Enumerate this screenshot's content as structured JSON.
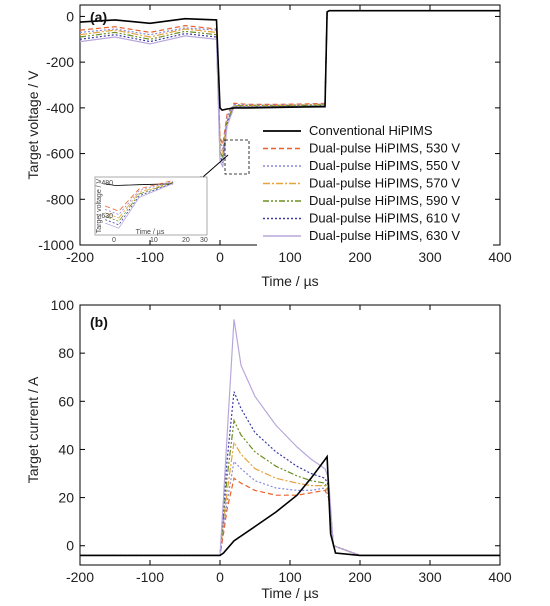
{
  "chart_data": [
    {
      "panel": "(a)",
      "type": "line",
      "xlabel": "Time / µs",
      "ylabel": "Target voltage / V",
      "xlim": [
        -200,
        400
      ],
      "ylim": [
        -1000,
        50
      ],
      "xticks": [
        "-200",
        "-100",
        "0",
        "100",
        "200",
        "300",
        "400"
      ],
      "yticks": [
        "0",
        "-200",
        "-400",
        "-600",
        "-800",
        "-1000"
      ],
      "legend_position": "right",
      "series": [
        {
          "name": "Conventional HiPIMS",
          "color": "#000000",
          "dash": "solid",
          "x": [
            -200,
            -150,
            -100,
            -50,
            -5,
            0,
            3,
            10,
            20,
            40,
            80,
            120,
            150,
            153,
            156,
            200,
            300,
            400
          ],
          "y": [
            -25,
            -15,
            -30,
            -10,
            -15,
            -400,
            -410,
            -405,
            -400,
            -400,
            -398,
            -396,
            -395,
            20,
            25,
            25,
            25,
            25
          ]
        },
        {
          "name": "Dual-pulse HiPIMS, 530 V",
          "color": "#e8612c",
          "dash": "5,3",
          "x": [
            -200,
            -150,
            -100,
            -50,
            -5,
            0,
            4,
            10,
            20,
            40,
            80,
            120,
            150,
            153,
            156,
            200,
            300,
            400
          ],
          "y": [
            -60,
            -45,
            -70,
            -40,
            -55,
            -530,
            -560,
            -430,
            -380,
            -385,
            -385,
            -383,
            -380,
            20,
            25,
            25,
            25,
            25
          ]
        },
        {
          "name": "Dual-pulse HiPIMS, 550 V",
          "color": "#8a8ae0",
          "dash": "2,2",
          "x": [
            -200,
            -150,
            -100,
            -50,
            -5,
            0,
            4,
            10,
            20,
            40,
            80,
            120,
            150,
            153,
            156,
            200,
            300,
            400
          ],
          "y": [
            -70,
            -55,
            -80,
            -50,
            -60,
            -550,
            -580,
            -440,
            -385,
            -388,
            -388,
            -386,
            -383,
            20,
            25,
            25,
            25,
            25
          ]
        },
        {
          "name": "Dual-pulse HiPIMS, 570 V",
          "color": "#e8a33c",
          "dash": "7,2,2,2",
          "x": [
            -200,
            -150,
            -100,
            -50,
            -5,
            0,
            4,
            10,
            20,
            40,
            80,
            120,
            150,
            153,
            156,
            200,
            300,
            400
          ],
          "y": [
            -80,
            -60,
            -90,
            -55,
            -70,
            -570,
            -600,
            -450,
            -390,
            -390,
            -390,
            -388,
            -385,
            20,
            25,
            25,
            25,
            25
          ]
        },
        {
          "name": "Dual-pulse HiPIMS, 590 V",
          "color": "#6d8f22",
          "dash": "6,2,2,2,2,2",
          "x": [
            -200,
            -150,
            -100,
            -50,
            -5,
            0,
            4,
            10,
            20,
            40,
            80,
            120,
            150,
            153,
            156,
            200,
            300,
            400
          ],
          "y": [
            -90,
            -70,
            -100,
            -65,
            -80,
            -590,
            -620,
            -460,
            -392,
            -392,
            -392,
            -390,
            -387,
            20,
            25,
            25,
            25,
            25
          ]
        },
        {
          "name": "Dual-pulse HiPIMS, 610 V",
          "color": "#3a3aa8",
          "dash": "2,2",
          "x": [
            -200,
            -150,
            -100,
            -50,
            -5,
            0,
            4,
            10,
            20,
            40,
            80,
            120,
            150,
            153,
            156,
            200,
            300,
            400
          ],
          "y": [
            -100,
            -80,
            -110,
            -75,
            -90,
            -610,
            -640,
            -470,
            -395,
            -395,
            -395,
            -393,
            -390,
            20,
            25,
            25,
            25,
            25
          ]
        },
        {
          "name": "Dual-pulse HiPIMS, 630 V",
          "color": "#b9a7dc",
          "dash": "solid",
          "x": [
            -200,
            -150,
            -100,
            -50,
            -5,
            0,
            4,
            10,
            20,
            40,
            80,
            120,
            150,
            153,
            156,
            200,
            300,
            400
          ],
          "y": [
            -110,
            -90,
            -120,
            -85,
            -100,
            -630,
            -660,
            -480,
            -398,
            -398,
            -398,
            -396,
            -393,
            20,
            25,
            25,
            25,
            25
          ]
        }
      ],
      "inset": {
        "ylabel": "Target voltage / V",
        "xlabel": "Time / µs",
        "xticks": [
          "0",
          "10",
          "20",
          "30"
        ],
        "yticks": [
          "-480",
          "-630"
        ]
      }
    },
    {
      "panel": "(b)",
      "type": "line",
      "xlabel": "Time / µs",
      "ylabel": "Target current / A",
      "xlim": [
        -200,
        400
      ],
      "ylim": [
        -8,
        100
      ],
      "xticks": [
        "-200",
        "-100",
        "0",
        "100",
        "200",
        "300",
        "400"
      ],
      "yticks": [
        "0",
        "20",
        "40",
        "60",
        "80",
        "100"
      ],
      "series": [
        {
          "name": "Conventional HiPIMS",
          "color": "#000000",
          "dash": "solid",
          "x": [
            -200,
            -100,
            0,
            5,
            20,
            50,
            80,
            110,
            130,
            148,
            153,
            158,
            165,
            200,
            300,
            400
          ],
          "y": [
            -4,
            -4,
            -4,
            -3,
            2,
            8,
            14,
            21,
            28,
            35,
            37,
            5,
            -3,
            -4,
            -4,
            -4
          ]
        },
        {
          "name": "Dual-pulse HiPIMS, 530 V",
          "color": "#e8612c",
          "dash": "5,3",
          "x": [
            -200,
            -100,
            0,
            5,
            10,
            20,
            30,
            50,
            80,
            110,
            130,
            150,
            155,
            162,
            200,
            300,
            400
          ],
          "y": [
            -4,
            -4,
            -4,
            5,
            15,
            28,
            26,
            23,
            21,
            21,
            22,
            23,
            20,
            0,
            -4,
            -4,
            -4
          ]
        },
        {
          "name": "Dual-pulse HiPIMS, 550 V",
          "color": "#8a8ae0",
          "dash": "2,2",
          "x": [
            -200,
            -100,
            0,
            5,
            10,
            20,
            30,
            50,
            80,
            110,
            130,
            150,
            155,
            162,
            200,
            300,
            400
          ],
          "y": [
            -4,
            -4,
            -4,
            8,
            18,
            35,
            32,
            27,
            24,
            23,
            23,
            24,
            21,
            0,
            -4,
            -4,
            -4
          ]
        },
        {
          "name": "Dual-pulse HiPIMS, 570 V",
          "color": "#e8a33c",
          "dash": "7,2,2,2",
          "x": [
            -200,
            -100,
            0,
            5,
            10,
            20,
            30,
            50,
            80,
            110,
            130,
            150,
            155,
            162,
            200,
            300,
            400
          ],
          "y": [
            -4,
            -4,
            -4,
            10,
            22,
            43,
            38,
            32,
            28,
            26,
            25,
            25,
            22,
            0,
            -4,
            -4,
            -4
          ]
        },
        {
          "name": "Dual-pulse HiPIMS, 590 V",
          "color": "#6d8f22",
          "dash": "6,2,2,2,2,2",
          "x": [
            -200,
            -100,
            0,
            5,
            10,
            20,
            30,
            50,
            80,
            110,
            130,
            150,
            155,
            162,
            200,
            300,
            400
          ],
          "y": [
            -4,
            -4,
            -4,
            12,
            28,
            52,
            46,
            39,
            33,
            29,
            27,
            26,
            23,
            0,
            -4,
            -4,
            -4
          ]
        },
        {
          "name": "Dual-pulse HiPIMS, 610 V",
          "color": "#3a3aa8",
          "dash": "2,2",
          "x": [
            -200,
            -100,
            0,
            5,
            10,
            20,
            30,
            50,
            80,
            110,
            130,
            150,
            155,
            162,
            200,
            300,
            400
          ],
          "y": [
            -4,
            -4,
            -4,
            15,
            35,
            64,
            57,
            47,
            39,
            33,
            30,
            28,
            25,
            0,
            -4,
            -4,
            -4
          ]
        },
        {
          "name": "Dual-pulse HiPIMS, 630 V",
          "color": "#b9a7dc",
          "dash": "solid",
          "x": [
            -200,
            -100,
            0,
            5,
            10,
            20,
            30,
            50,
            80,
            110,
            130,
            150,
            155,
            162,
            200,
            300,
            400
          ],
          "y": [
            -4,
            -4,
            -4,
            20,
            45,
            94,
            75,
            62,
            50,
            41,
            36,
            32,
            28,
            0,
            -4,
            -4,
            -4
          ]
        }
      ]
    }
  ]
}
